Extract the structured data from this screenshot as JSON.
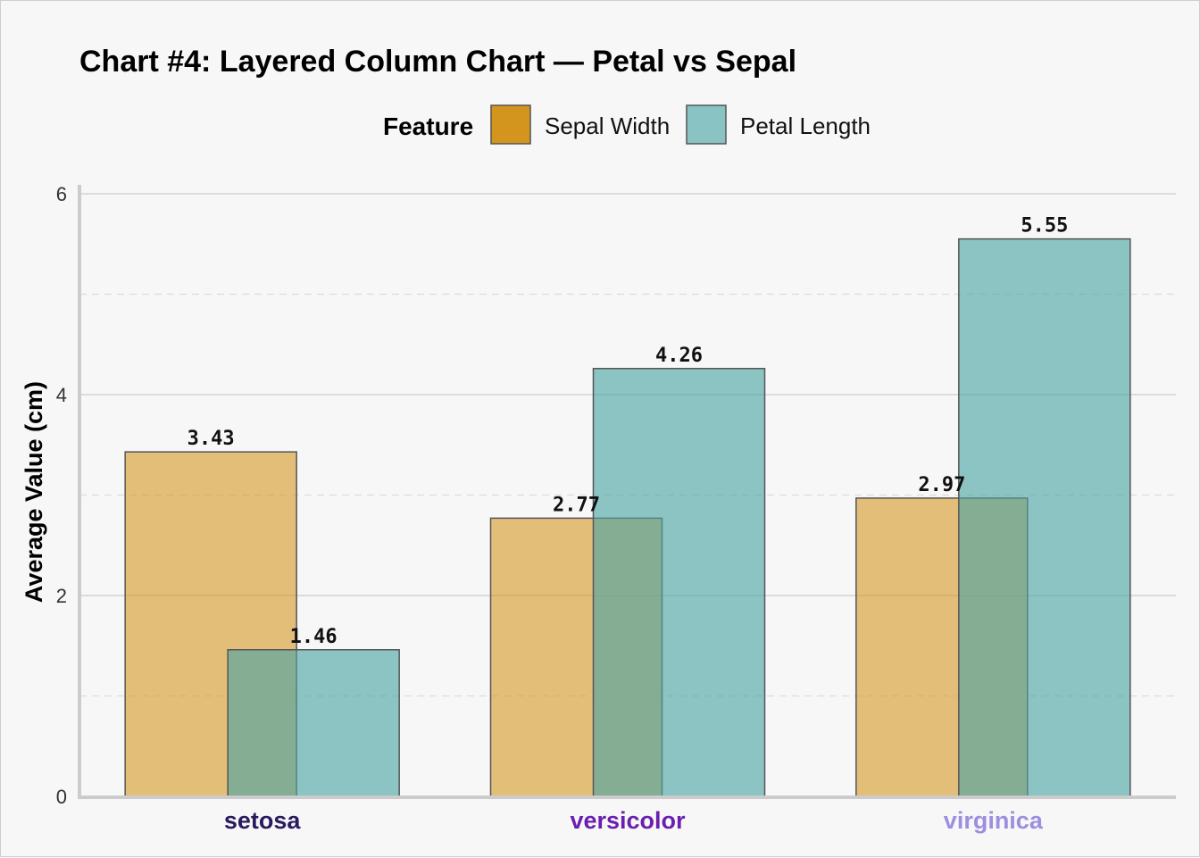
{
  "chart_data": {
    "type": "bar",
    "title": "Chart #4: Layered Column Chart — Petal vs Sepal",
    "xlabel": "",
    "ylabel": "Average Value (cm)",
    "ylim": [
      0,
      6
    ],
    "yticks": [
      "0",
      "2",
      "4",
      "6"
    ],
    "categories": [
      "setosa",
      "versicolor",
      "virginica"
    ],
    "category_colors": [
      "#2a1a5e",
      "#6a1fb0",
      "#9e8ee0"
    ],
    "legend": {
      "title": "Feature",
      "placement": "top-center"
    },
    "grid": true,
    "series": [
      {
        "name": "Sepal Width",
        "color": "#d4951e",
        "values": [
          3.43,
          2.77,
          2.97
        ],
        "labels": [
          "3.43",
          "2.77",
          "2.97"
        ]
      },
      {
        "name": "Petal Length",
        "color": "#4aa3a3",
        "values": [
          1.46,
          4.26,
          5.55
        ],
        "labels": [
          "1.46",
          "4.26",
          "5.55"
        ]
      }
    ]
  }
}
